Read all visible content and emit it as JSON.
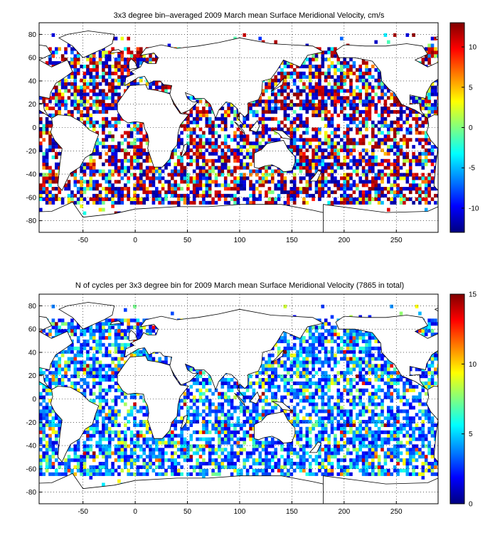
{
  "panels": [
    {
      "title": "3x3 degree bin–averaged 2009 March mean Surface Meridional Velocity, cm/s",
      "x_ticks": [
        "-50",
        "0",
        "50",
        "100",
        "150",
        "200",
        "250"
      ],
      "y_ticks": [
        "80",
        "60",
        "40",
        "20",
        "0",
        "-20",
        "-40",
        "-60",
        "-80"
      ],
      "colorbar_ticks": [
        "10",
        "5",
        "0",
        "-5",
        "-10"
      ],
      "colorbar_range": [
        -13,
        13
      ],
      "colormap": "jet",
      "field": "meridional_velocity"
    },
    {
      "title": "N of cycles per 3x3 degree bin for 2009 March mean Surface Meridional Velocity (7865 in total)",
      "x_ticks": [
        "-50",
        "0",
        "50",
        "100",
        "150",
        "200",
        "250"
      ],
      "y_ticks": [
        "80",
        "60",
        "40",
        "20",
        "0",
        "-20",
        "-40",
        "-60",
        "-80"
      ],
      "colorbar_ticks": [
        "15",
        "10",
        "5",
        "0"
      ],
      "colorbar_range": [
        0,
        15
      ],
      "colormap": "jet",
      "field": "cycle_count"
    }
  ],
  "map": {
    "lon_range": [
      -92,
      290
    ],
    "lat_range": [
      -90,
      90
    ],
    "grid": "dotted",
    "bin_size_deg": 3,
    "coastline_color": "#000000"
  }
}
